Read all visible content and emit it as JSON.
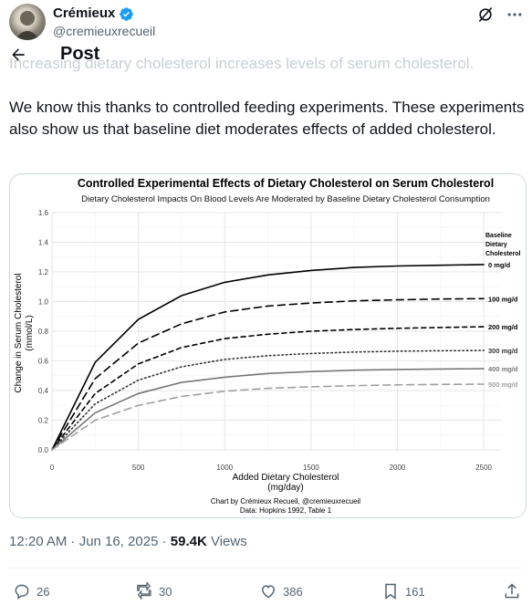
{
  "author": {
    "name": "Crémieux",
    "handle": "@cremieuxrecueil"
  },
  "header": {
    "title": "Post",
    "faded_text": "Increasing dietary cholesterol increases levels of serum cholesterol."
  },
  "tweet": {
    "text": "We know this thanks to controlled feeding experiments. These experiments also show us that baseline diet moderates effects of added cholesterol."
  },
  "chart_data": {
    "type": "line",
    "title": "Controlled Experimental Effects of Dietary Cholesterol on Serum Cholesterol",
    "subtitle": "Dietary Cholesterol Impacts On Blood Levels Are Moderated by Baseline Dietary Cholesterol Consumption",
    "xlabel": "Added Dietary Cholesterol\n(mg/day)",
    "ylabel": "Change in Serum Cholesterol\n(mmol/L)",
    "xlim": [
      0,
      2600
    ],
    "ylim": [
      0,
      1.6
    ],
    "xticks": [
      0,
      500,
      1000,
      1500,
      2000,
      2500
    ],
    "yticks": [
      0.0,
      0.2,
      0.4,
      0.6,
      0.8,
      1.0,
      1.2,
      1.4,
      1.6
    ],
    "legend_title": "Baseline\nDietary\nCholesterol",
    "caption": "Chart by Crémieux Recueil, @cremieuxrecueil",
    "source": "Data: Hopkins 1992, Table 1",
    "grid": true,
    "x": [
      0,
      250,
      500,
      750,
      1000,
      1250,
      1500,
      1750,
      2000,
      2250,
      2500
    ],
    "series": [
      {
        "name": "0 mg/d",
        "values": [
          0.0,
          0.59,
          0.88,
          1.04,
          1.13,
          1.18,
          1.21,
          1.23,
          1.24,
          1.245,
          1.25
        ],
        "color": "#000000",
        "dash": "solid"
      },
      {
        "name": "100 mg/d",
        "values": [
          0.0,
          0.48,
          0.72,
          0.85,
          0.93,
          0.97,
          0.99,
          1.005,
          1.012,
          1.017,
          1.02
        ],
        "color": "#000000",
        "dash": "long"
      },
      {
        "name": "200 mg/d",
        "values": [
          0.0,
          0.38,
          0.58,
          0.69,
          0.75,
          0.78,
          0.8,
          0.812,
          0.82,
          0.825,
          0.83
        ],
        "color": "#000000",
        "dash": "short"
      },
      {
        "name": "300 mg/d",
        "values": [
          0.0,
          0.31,
          0.47,
          0.56,
          0.61,
          0.635,
          0.65,
          0.66,
          0.665,
          0.668,
          0.67
        ],
        "color": "#333333",
        "dash": "dotted"
      },
      {
        "name": "400 mg/d",
        "values": [
          0.0,
          0.25,
          0.38,
          0.455,
          0.49,
          0.515,
          0.528,
          0.537,
          0.542,
          0.545,
          0.547
        ],
        "color": "#777777",
        "dash": "solid"
      },
      {
        "name": "500 mg/d",
        "values": [
          0.0,
          0.2,
          0.3,
          0.36,
          0.395,
          0.415,
          0.425,
          0.433,
          0.438,
          0.441,
          0.443
        ],
        "color": "#a0a0a0",
        "dash": "long"
      }
    ]
  },
  "meta": {
    "time": "12:20 AM · Jun 16, 2025 · ",
    "views_count": "59.4K",
    "views_label": " Views"
  },
  "actions": {
    "replies": "26",
    "reposts": "30",
    "likes": "386",
    "bookmarks": "161"
  }
}
